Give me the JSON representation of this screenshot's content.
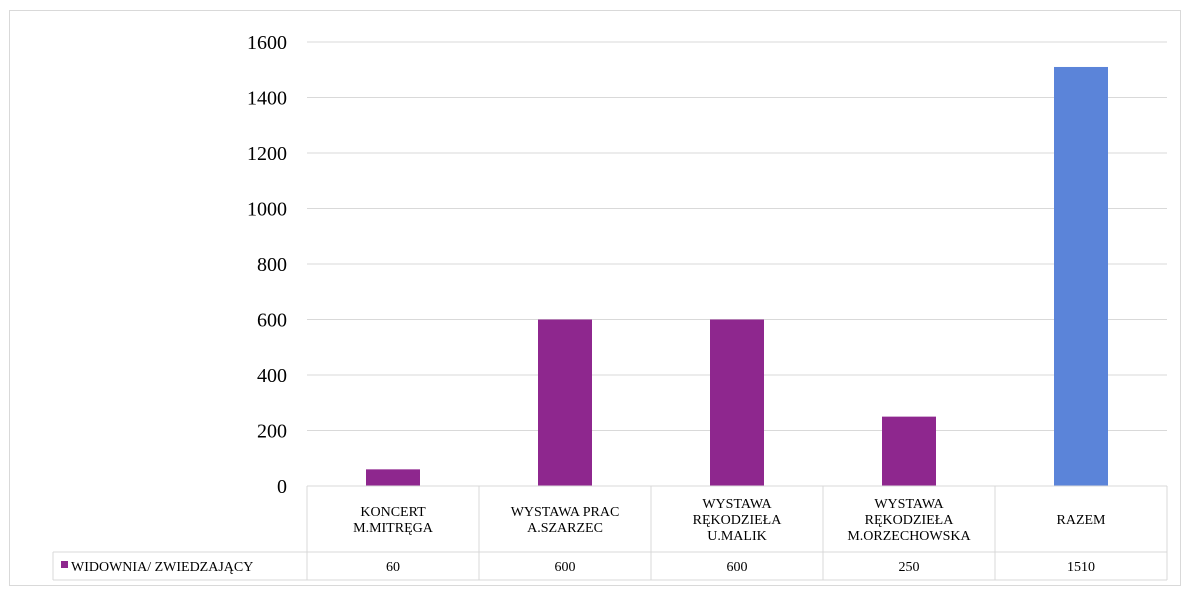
{
  "chart_data": {
    "type": "bar",
    "title": "",
    "xlabel": "",
    "ylabel": "",
    "ylim": [
      0,
      1600
    ],
    "yticks": [
      0,
      200,
      400,
      600,
      800,
      1000,
      1200,
      1400,
      1600
    ],
    "grid": true,
    "legend_position": "data-table-left",
    "categories": [
      [
        "KONCERT",
        "M.MITRĘGA"
      ],
      [
        "WYSTAWA PRAC",
        "A.SZARZEC"
      ],
      [
        "WYSTAWA",
        "RĘKODZIEŁA",
        "U.MALIK"
      ],
      [
        "WYSTAWA",
        "RĘKODZIEŁA",
        "M.ORZECHOWSKA"
      ],
      [
        "RAZEM"
      ]
    ],
    "series": [
      {
        "name": "WIDOWNIA/ ZWIEDZAJĄCY",
        "values": [
          60,
          600,
          600,
          250,
          1510
        ],
        "color": "#8e278e",
        "point_colors": [
          "#8e278e",
          "#8e278e",
          "#8e278e",
          "#8e278e",
          "#5b84d9"
        ]
      }
    ],
    "data_table": {
      "values_text": [
        "60",
        "600",
        "600",
        "250",
        "1510"
      ]
    }
  }
}
